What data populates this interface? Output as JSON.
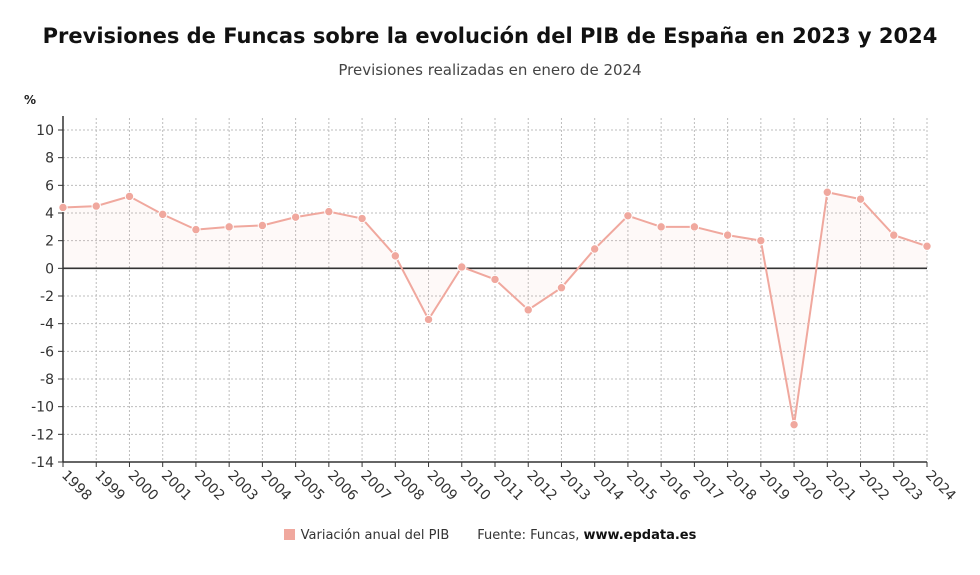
{
  "chart_data": {
    "type": "area",
    "title": "Previsiones de Funcas sobre la evolución del PIB de España en 2023 y 2024",
    "subtitle": "Previsiones realizadas en enero de 2024",
    "ylabel": "%",
    "ylim": [
      -14,
      10
    ],
    "yticks": [
      10,
      8,
      6,
      4,
      2,
      0,
      -2,
      -4,
      -6,
      -8,
      -10,
      -12,
      -14
    ],
    "ytick_labels": [
      "10",
      "8",
      "6",
      "4",
      "2",
      "0",
      "-2",
      "-4",
      "-6",
      "-8",
      "-10",
      "-12",
      "-14"
    ],
    "categories": [
      "1998",
      "1999",
      "2000",
      "2001",
      "2002",
      "2003",
      "2004",
      "2005",
      "2006",
      "2007",
      "2008",
      "2009",
      "2010",
      "2011",
      "2012",
      "2013",
      "2014",
      "2015",
      "2016",
      "2017",
      "2018",
      "2019",
      "2020",
      "2021",
      "2022",
      "2023",
      "2024"
    ],
    "series": [
      {
        "name": "Variación anual del PIB",
        "color": "#f0a89e",
        "values": [
          4.4,
          4.5,
          5.2,
          3.9,
          2.8,
          3.0,
          3.1,
          3.7,
          4.1,
          3.6,
          0.9,
          -3.7,
          0.1,
          -0.8,
          -3.0,
          -1.4,
          1.4,
          3.8,
          3.0,
          3.0,
          2.4,
          2.0,
          -11.3,
          5.5,
          5.0,
          2.4,
          1.6
        ]
      }
    ],
    "grid": true,
    "legend_position": "bottom"
  },
  "legend": {
    "source_prefix": "Fuente: Funcas,",
    "source_site": "www.epdata.es"
  }
}
